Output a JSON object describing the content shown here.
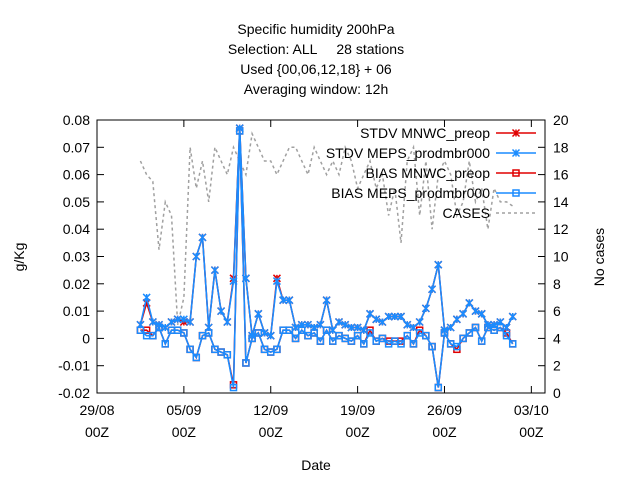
{
  "chart_data": {
    "type": "line",
    "title": [
      "Specific humidity 200hPa",
      "Selection: ALL     28 stations",
      "Used {00,06,12,18} + 06",
      "Averaging window: 12h"
    ],
    "x_label": "Date",
    "y_label": "g/Kg",
    "y2_label": "No cases",
    "x": [
      3.5,
      4,
      4.5,
      5,
      5.5,
      6,
      6.5,
      7,
      7.5,
      8,
      8.5,
      9,
      9.5,
      10,
      10.5,
      11,
      11.5,
      12,
      12.5,
      13,
      13.5,
      14,
      14.5,
      15,
      15.5,
      16,
      16.5,
      17,
      17.5,
      18,
      18.5,
      19,
      19.5,
      20,
      20.5,
      21,
      21.5,
      22,
      22.5,
      23,
      23.5,
      24,
      24.5,
      25,
      25.5,
      26,
      26.5,
      27,
      27.5,
      28,
      28.5,
      29,
      29.5,
      30,
      30.5,
      31,
      31.5,
      32,
      32.5,
      33,
      33.5
    ],
    "xlim": [
      0,
      36.1
    ],
    "xticks": [
      {
        "value": 0,
        "label": "29/08\n00Z"
      },
      {
        "value": 7,
        "label": "05/09\n00Z"
      },
      {
        "value": 14,
        "label": "12/09\n00Z"
      },
      {
        "value": 21,
        "label": "19/09\n00Z"
      },
      {
        "value": 28,
        "label": "26/09\n00Z"
      },
      {
        "value": 35,
        "label": "03/10\n00Z"
      }
    ],
    "ylim": [
      -0.02,
      0.08
    ],
    "yticks": [
      -0.02,
      -0.01,
      0,
      0.01,
      0.02,
      0.03,
      0.04,
      0.05,
      0.06,
      0.07,
      0.08
    ],
    "y2lim": [
      0,
      20
    ],
    "y2ticks": [
      0,
      2,
      4,
      6,
      8,
      10,
      12,
      14,
      16,
      18,
      20
    ],
    "legend": "upper right",
    "series": [
      {
        "name": "STDV MNWC_preop",
        "color": "#e00000",
        "marker": "x",
        "values": [
          0.005,
          0.013,
          0.006,
          0.005,
          0.004,
          0.006,
          0.007,
          0.006,
          0.006,
          0.03,
          0.037,
          0.004,
          0.025,
          0.01,
          0.006,
          0.022,
          0.077,
          0.022,
          0.001,
          0.009,
          0.002,
          0.001,
          0.022,
          0.014,
          0.014,
          0.004,
          0.005,
          0.005,
          0.004,
          0.005,
          0.014,
          0.003,
          0.006,
          0.005,
          0.004,
          0.004,
          0.003,
          0.009,
          0.007,
          0.006,
          0.008,
          0.008,
          0.008,
          0.005,
          0.004,
          0.006,
          0.011,
          0.018,
          0.027,
          0.003,
          0.004,
          0.007,
          0.009,
          0.013,
          0.01,
          0.009,
          0.005,
          0.005,
          0.006,
          0.004,
          0.008
        ]
      },
      {
        "name": "STDV MEPS_prodmbr000",
        "color": "#1a8cff",
        "marker": "x",
        "values": [
          0.005,
          0.015,
          0.006,
          0.005,
          0.004,
          0.006,
          0.007,
          0.007,
          0.006,
          0.03,
          0.037,
          0.004,
          0.025,
          0.01,
          0.006,
          0.021,
          0.077,
          0.022,
          0.001,
          0.009,
          0.002,
          0.001,
          0.021,
          0.014,
          0.014,
          0.004,
          0.005,
          0.005,
          0.004,
          0.005,
          0.014,
          0.003,
          0.006,
          0.005,
          0.004,
          0.004,
          0.003,
          0.009,
          0.007,
          0.006,
          0.008,
          0.008,
          0.008,
          0.005,
          0.004,
          0.006,
          0.011,
          0.018,
          0.027,
          0.003,
          0.004,
          0.007,
          0.009,
          0.013,
          0.01,
          0.009,
          0.005,
          0.005,
          0.006,
          0.004,
          0.008
        ]
      },
      {
        "name": "BIAS MNWC_preop",
        "color": "#e00000",
        "marker": "square",
        "values": [
          0.003,
          0.003,
          0.001,
          0.004,
          -0.002,
          0.003,
          0.003,
          0.002,
          -0.004,
          -0.007,
          0.001,
          0.002,
          -0.004,
          -0.005,
          -0.006,
          -0.017,
          0.076,
          -0.009,
          0.0,
          0.002,
          -0.004,
          -0.005,
          -0.004,
          0.003,
          0.003,
          0.0,
          0.003,
          0.001,
          0.002,
          -0.001,
          0.003,
          -0.001,
          0.001,
          0.0,
          -0.001,
          0.001,
          -0.002,
          0.003,
          -0.001,
          0.0,
          -0.001,
          -0.001,
          -0.001,
          0.001,
          -0.002,
          0.003,
          0.001,
          -0.003,
          -0.018,
          0.002,
          -0.002,
          -0.004,
          0.0,
          0.002,
          0.004,
          -0.001,
          0.004,
          0.003,
          0.004,
          0.002,
          -0.002
        ]
      },
      {
        "name": "BIAS MEPS_prodmbr000",
        "color": "#1a8cff",
        "marker": "square",
        "values": [
          0.003,
          0.001,
          0.001,
          0.004,
          -0.002,
          0.003,
          0.003,
          0.002,
          -0.004,
          -0.007,
          0.001,
          0.002,
          -0.004,
          -0.005,
          -0.006,
          -0.018,
          0.076,
          -0.009,
          0.0,
          0.002,
          -0.004,
          -0.005,
          -0.004,
          0.003,
          0.003,
          0.0,
          0.003,
          0.001,
          0.002,
          -0.001,
          0.003,
          -0.001,
          0.001,
          0.0,
          -0.001,
          0.001,
          -0.002,
          0.002,
          -0.001,
          0.0,
          -0.002,
          -0.001,
          -0.002,
          0.001,
          -0.002,
          0.002,
          0.001,
          -0.003,
          -0.018,
          0.002,
          -0.002,
          -0.003,
          0.0,
          0.002,
          0.004,
          -0.001,
          0.004,
          0.003,
          0.004,
          0.001,
          -0.002
        ]
      },
      {
        "name": "CASES",
        "color": "#a0a0a0",
        "marker": "none",
        "dashed": true,
        "axis": "y2",
        "values": [
          17,
          16,
          15.5,
          10.5,
          14,
          13,
          5,
          7,
          18,
          15,
          17,
          14,
          18,
          17,
          16,
          18,
          17,
          16,
          19,
          18,
          17,
          17,
          16,
          17,
          18,
          18,
          17,
          16,
          18,
          17,
          16,
          17,
          16,
          18,
          17,
          15,
          16,
          17,
          15,
          16,
          13,
          15,
          11,
          17,
          18,
          13,
          17,
          12,
          16,
          17,
          16,
          13,
          14,
          17,
          14,
          15,
          12,
          15,
          14,
          14,
          13.7
        ]
      }
    ]
  }
}
